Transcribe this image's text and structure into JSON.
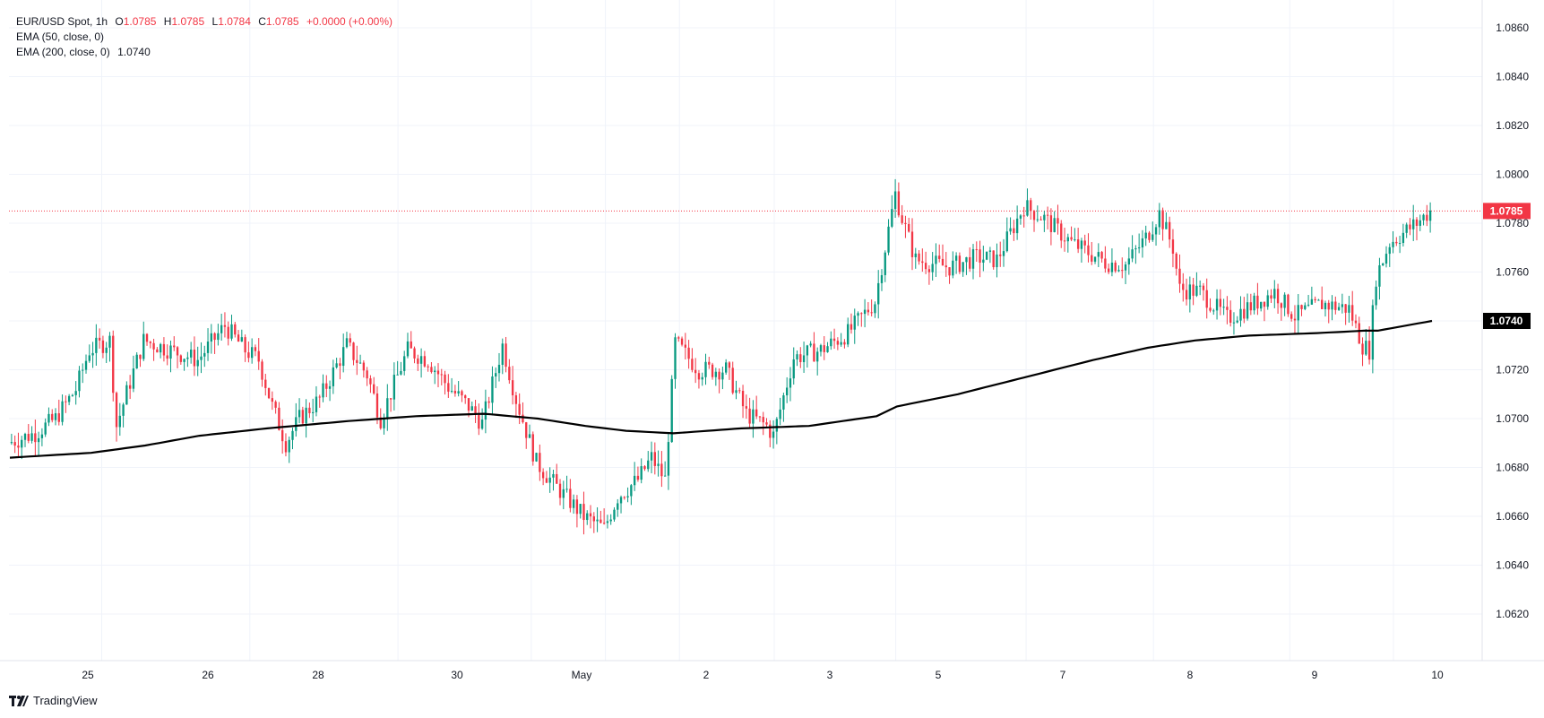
{
  "legend": {
    "symbol": "EUR/USD Spot, 1h",
    "o_label": "O",
    "o_value": "1.0785",
    "h_label": "H",
    "h_value": "1.0785",
    "l_label": "L",
    "l_value": "1.0784",
    "c_label": "C",
    "c_value": "1.0785",
    "change": "+0.0000 (+0.00%)",
    "ema50": "EMA (50, close, 0)",
    "ema200": "EMA (200, close, 0)",
    "ema200_value": "1.0740"
  },
  "brand": {
    "name": "TradingView",
    "icon": "tradingview-logo-icon"
  },
  "colors": {
    "up": "#089981",
    "down": "#f23645",
    "ema": "#000000",
    "last_price": "#f23645",
    "ema_badge": "#000000"
  },
  "chart_data": {
    "type": "candlestick",
    "title": "EUR/USD Spot, 1h",
    "ylim": [
      1.06,
      1.087
    ],
    "y_ticks": [
      1.062,
      1.064,
      1.066,
      1.068,
      1.07,
      1.072,
      1.074,
      1.076,
      1.078,
      1.08,
      1.082,
      1.084,
      1.086
    ],
    "x_ticks": [
      "25",
      "26",
      "28",
      "30",
      "May",
      "2",
      "3",
      "5",
      "7",
      "8",
      "9",
      "10"
    ],
    "grid": true,
    "last_price": 1.0785,
    "last_price_label": "1.0785",
    "ema200_last": 1.074,
    "ema200_label": "1.0740",
    "price_path": [
      [
        0,
        1.069
      ],
      [
        8,
        1.0694
      ],
      [
        14,
        1.07
      ],
      [
        20,
        1.0712
      ],
      [
        24,
        1.0728
      ],
      [
        30,
        1.0732
      ],
      [
        32,
        1.0697
      ],
      [
        36,
        1.0715
      ],
      [
        40,
        1.0732
      ],
      [
        50,
        1.0727
      ],
      [
        56,
        1.0724
      ],
      [
        64,
        1.0738
      ],
      [
        70,
        1.0728
      ],
      [
        74,
        1.0724
      ],
      [
        78,
        1.0705
      ],
      [
        82,
        1.069
      ],
      [
        86,
        1.07
      ],
      [
        92,
        1.0708
      ],
      [
        100,
        1.073
      ],
      [
        106,
        1.0718
      ],
      [
        110,
        1.07
      ],
      [
        118,
        1.0728
      ],
      [
        124,
        1.0724
      ],
      [
        130,
        1.0713
      ],
      [
        136,
        1.0705
      ],
      [
        140,
        1.0698
      ],
      [
        146,
        1.073
      ],
      [
        150,
        1.0708
      ],
      [
        156,
        1.0682
      ],
      [
        162,
        1.0672
      ],
      [
        170,
        1.066
      ],
      [
        176,
        1.0655
      ],
      [
        180,
        1.0668
      ],
      [
        186,
        1.0675
      ],
      [
        190,
        1.0684
      ],
      [
        194,
        1.0675
      ],
      [
        197,
        1.0731
      ],
      [
        204,
        1.072
      ],
      [
        212,
        1.072
      ],
      [
        218,
        1.0702
      ],
      [
        224,
        1.0697
      ],
      [
        226,
        1.0693
      ],
      [
        232,
        1.0725
      ],
      [
        240,
        1.0728
      ],
      [
        248,
        1.0735
      ],
      [
        256,
        1.0748
      ],
      [
        262,
        1.0792
      ],
      [
        264,
        1.0782
      ],
      [
        268,
        1.0765
      ],
      [
        278,
        1.0762
      ],
      [
        286,
        1.0766
      ],
      [
        292,
        1.0765
      ],
      [
        300,
        1.0787
      ],
      [
        306,
        1.0782
      ],
      [
        314,
        1.0772
      ],
      [
        324,
        1.0764
      ],
      [
        330,
        1.0763
      ],
      [
        336,
        1.0774
      ],
      [
        340,
        1.0784
      ],
      [
        344,
        1.077
      ],
      [
        346,
        1.0753
      ],
      [
        352,
        1.0752
      ],
      [
        360,
        1.0741
      ],
      [
        368,
        1.0747
      ],
      [
        374,
        1.0752
      ],
      [
        380,
        1.0742
      ],
      [
        388,
        1.0747
      ],
      [
        396,
        1.0745
      ],
      [
        400,
        1.073
      ],
      [
        402,
        1.0728
      ],
      [
        404,
        1.0758
      ],
      [
        408,
        1.0772
      ],
      [
        416,
        1.078
      ],
      [
        420,
        1.0785
      ]
    ],
    "ema_path": [
      [
        0,
        1.0684
      ],
      [
        24,
        1.0686
      ],
      [
        40,
        1.0689
      ],
      [
        56,
        1.0693
      ],
      [
        76,
        1.0696
      ],
      [
        100,
        1.0699
      ],
      [
        120,
        1.0701
      ],
      [
        140,
        1.0702
      ],
      [
        156,
        1.07
      ],
      [
        170,
        1.0697
      ],
      [
        182,
        1.0695
      ],
      [
        196,
        1.0694
      ],
      [
        216,
        1.0696
      ],
      [
        236,
        1.0697
      ],
      [
        256,
        1.0701
      ],
      [
        262,
        1.0705
      ],
      [
        280,
        1.071
      ],
      [
        300,
        1.0717
      ],
      [
        320,
        1.0724
      ],
      [
        336,
        1.0729
      ],
      [
        350,
        1.0732
      ],
      [
        366,
        1.0734
      ],
      [
        386,
        1.0735
      ],
      [
        400,
        1.0736
      ],
      [
        404,
        1.0736
      ],
      [
        420,
        1.074
      ]
    ],
    "candle_count": 420,
    "seed": 7
  }
}
